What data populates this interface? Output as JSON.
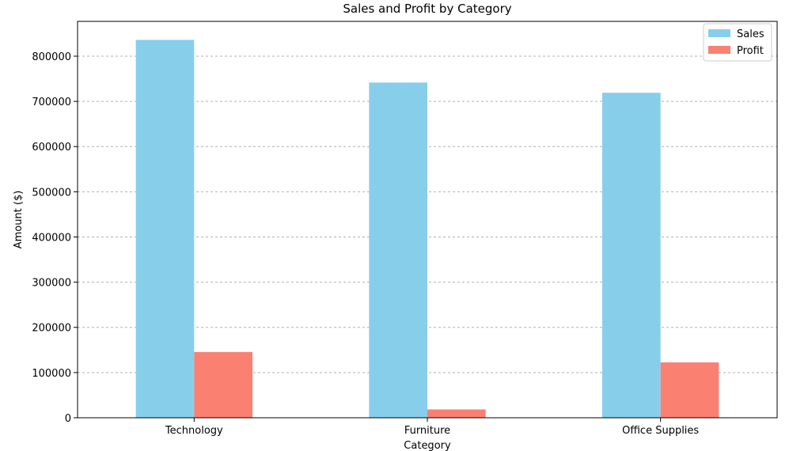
{
  "chart_data": {
    "type": "bar",
    "title": "Sales and Profit by Category",
    "xlabel": "Category",
    "ylabel": "Amount ($)",
    "categories": [
      "Technology",
      "Furniture",
      "Office Supplies"
    ],
    "series": [
      {
        "name": "Sales",
        "color": "#87ceeb",
        "values": [
          836000,
          741700,
          719000
        ]
      },
      {
        "name": "Profit",
        "color": "#fa8072",
        "values": [
          145500,
          18450,
          122500
        ]
      }
    ],
    "ylim": [
      0,
      877000
    ],
    "yticks": [
      0,
      100000,
      200000,
      300000,
      400000,
      500000,
      600000,
      700000,
      800000
    ],
    "ytick_labels": [
      "0",
      "100000",
      "200000",
      "300000",
      "400000",
      "500000",
      "600000",
      "700000",
      "800000"
    ],
    "grid": "y-dashed",
    "legend_position": "top-right"
  }
}
